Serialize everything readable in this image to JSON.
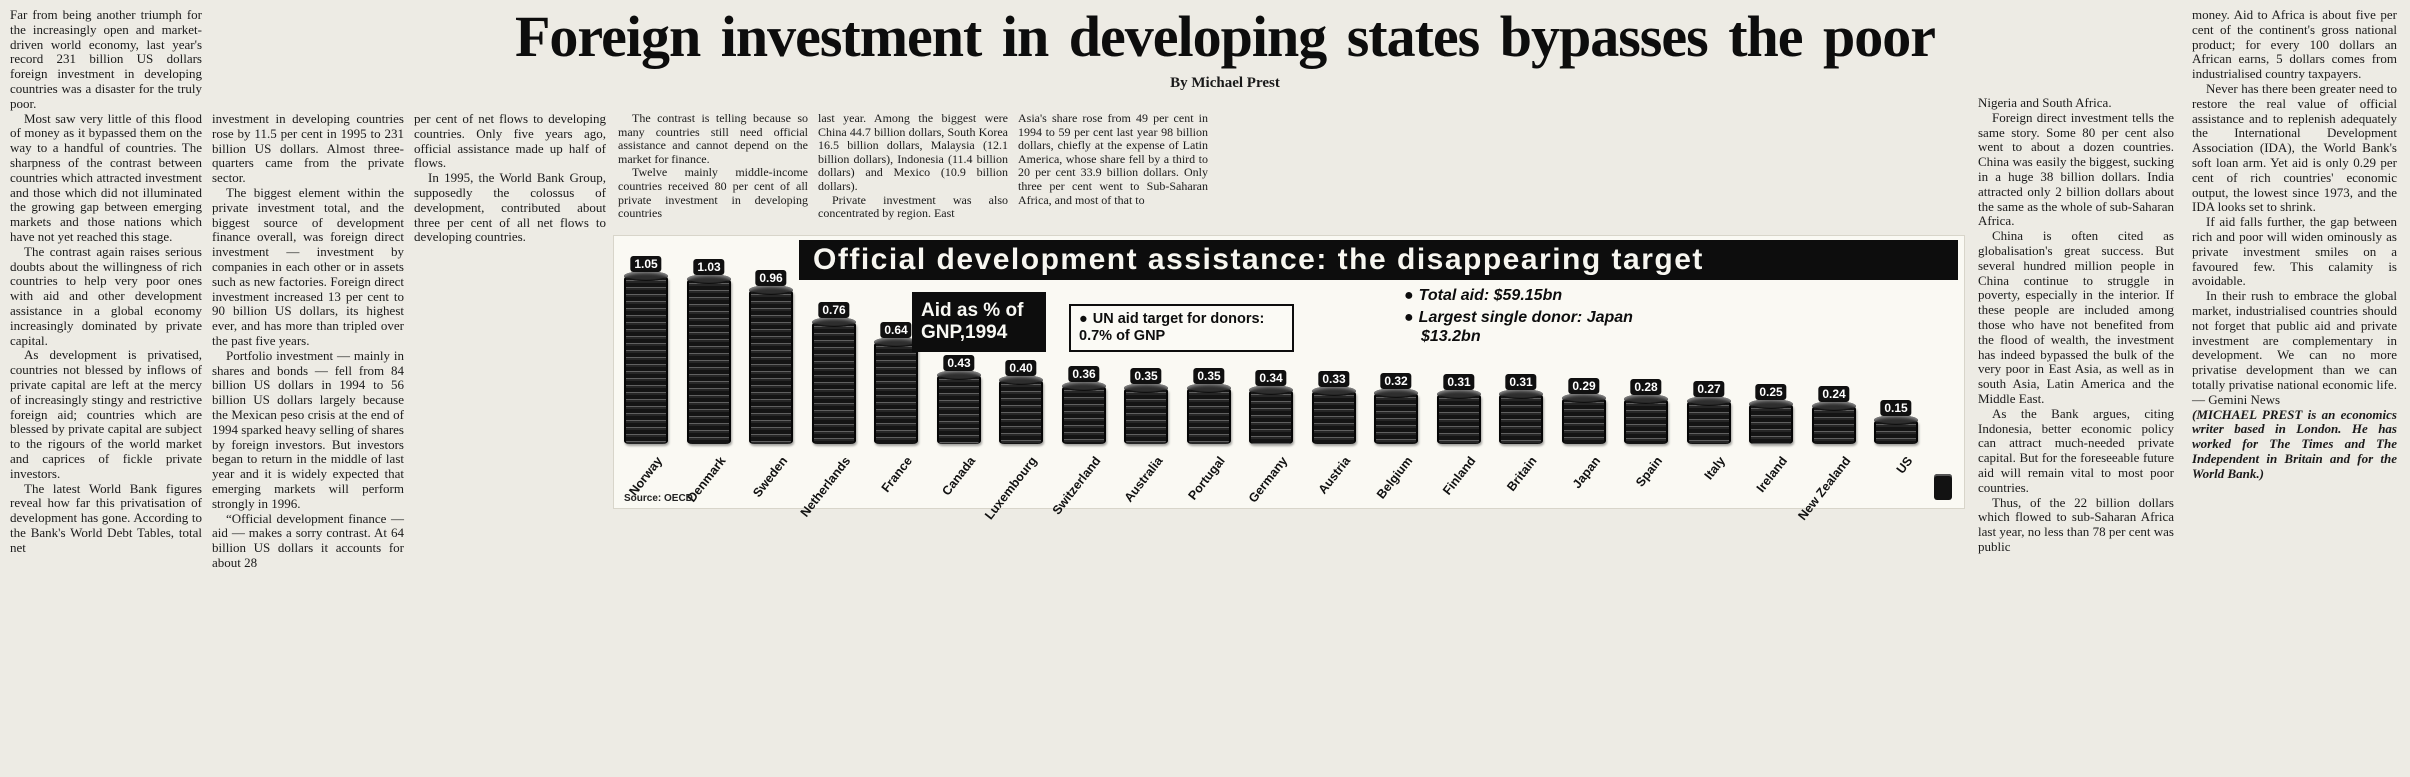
{
  "page": {
    "headline": "Foreign investment in developing states bypasses the poor",
    "byline": "By Michael Prest"
  },
  "columns": {
    "col1": [
      "Far from being another triumph for the increasingly open and market-driven world economy, last year's record 231 billion US dollars foreign investment in developing countries was a disaster for the truly poor.",
      "Most saw very little of this flood of money as it bypassed them on the way to a handful of countries. The sharpness of the contrast between countries which attracted investment and those which did not illuminated the growing gap between emerging markets and those nations which have not yet reached this stage.",
      "The contrast again raises serious doubts about the willingness of rich countries to help very poor ones with aid and other development assistance in a global economy increasingly dominated by private capital.",
      "As development is privatised, countries not blessed by inflows of private capital are left at the mercy of increasingly stingy and restrictive foreign aid; countries which are blessed by private capital are subject to the rigours of the world market and caprices of fickle private investors.",
      "The latest World Bank figures reveal how far this privatisation of development has gone. According to the Bank's World Debt Tables, total net"
    ],
    "col2": [
      "investment in developing countries rose by 11.5 per cent in 1995 to 231 billion US dollars. Almost three-quarters came from the private sector.",
      "The biggest element within the private investment total, and the biggest source of development finance overall, was foreign direct investment — investment by companies in each other or in assets such as new factories. Foreign direct investment increased 13 per cent to 90 billion US dollars, its highest ever, and has more than tripled over the past five years.",
      "Portfolio investment — mainly in shares and bonds — fell from 84 billion US dollars in 1994 to 56 billion US dollars largely because the Mexican peso crisis at the end of 1994 sparked heavy selling of shares by foreign investors. But investors began to return in the middle of last year and it is widely expected that emerging markets will perform strongly in 1996.",
      "“Official development finance — aid — makes a sorry contrast. At 64 billion US dollars it accounts for about 28"
    ],
    "col3": [
      "per cent of net flows to developing countries. Only five years ago, official assistance made up half of flows.",
      "In 1995, the World Bank Group, supposedly the colossus of development, contributed about three per cent of all net flows to developing countries."
    ],
    "col4": [
      "The contrast is telling because so many countries still need official assistance and cannot depend on the market for finance.",
      "Twelve mainly middle-income countries received 80 per cent of all private investment in developing countries"
    ],
    "col5": [
      "last year. Among the biggest were China 44.7 billion dollars, South Korea 16.5 billion dollars, Malaysia (12.1 billion dollars), Indonesia (11.4 billion dollars) and Mexico (10.9 billion dollars).",
      "Private investment was also concentrated by region. East"
    ],
    "col6": [
      "Asia's share rose from 49 per cent in 1994 to 59 per cent last year 98 billion dollars, chiefly at the expense of Latin America, whose share fell by a third to 20 per cent 33.9 billion dollars. Only three per cent went to Sub-Saharan Africa, and most of that to"
    ],
    "col7": [
      "Nigeria and South Africa.",
      "Foreign direct investment tells the same story. Some 80 per cent also went to about a dozen countries. China was easily the biggest, sucking in a huge 38 billion dollars. India attracted only 2 billion dollars about the same as the whole of sub-Saharan Africa.",
      "China is often cited as globalisation's great success. But several hundred million people in China continue to struggle in poverty, especially in the interior. If these people are included among those who have not benefited from the flood of wealth, the investment has indeed bypassed the bulk of the very poor in East Asia, as well as in south Asia, Latin America and the Middle East.",
      "As the Bank argues, citing Indonesia, better economic policy can attract much-needed private capital. But for the foreseeable future aid will remain vital to most poor countries.",
      "Thus, of the 22 billion dollars which flowed to sub-Saharan Africa last year, no less than 78 per cent was public"
    ],
    "col8": [
      "money. Aid to Africa is about five per cent of the continent's gross national product; for every 100 dollars an African earns, 5 dollars comes from industrialised country taxpayers.",
      "Never has there been greater need to restore the real value of official assistance and to replenish adequately the International Development Association (IDA), the World Bank's soft loan arm. Yet aid is only 0.29 per cent of rich countries' economic output, the lowest since 1973, and the IDA looks set to shrink.",
      "If aid falls further, the gap between rich and poor will widen ominously as private investment smiles on a favoured few. This calamity is avoidable.",
      "In their rush to embrace the global market, industrialised countries should not forget that public aid and private investment are complementary in development. We can no more privatise development than we can totally privatise national economic life. — Gemini News"
    ],
    "bio": "(MICHAEL PREST is an economics writer based in London. He has worked for The Times and The Independent in Britain and for the World Bank.)"
  },
  "chart_data": {
    "type": "bar",
    "title": "Official development assistance: the disappearing target",
    "subtitle": "Aid as % of GNP,1994",
    "bullet": "●",
    "un_target": "UN aid target for donors: 0.7% of GNP",
    "total_aid": "Total aid: $59.15bn",
    "largest_donor": "Largest single donor: Japan $13.2bn",
    "source": "Source: OECD",
    "ylabel": "Aid as % of GNP",
    "ylim": [
      0,
      1.1
    ],
    "legend_position": "none",
    "grid": false,
    "categories": [
      "Norway",
      "Denmark",
      "Sweden",
      "Netherlands",
      "France",
      "Canada",
      "Luxembourg",
      "Switzerland",
      "Australia",
      "Portugal",
      "Germany",
      "Austria",
      "Belgium",
      "Finland",
      "Britain",
      "Japan",
      "Spain",
      "Italy",
      "Ireland",
      "New Zealand",
      "US"
    ],
    "values": [
      1.05,
      1.03,
      0.96,
      0.76,
      0.64,
      0.43,
      0.4,
      0.36,
      0.35,
      0.35,
      0.34,
      0.33,
      0.32,
      0.31,
      0.31,
      0.29,
      0.28,
      0.27,
      0.25,
      0.24,
      0.15
    ],
    "bar_colors": {
      "coin": "#141414",
      "rim": "#606060"
    },
    "accent_colors": {
      "titlebar": "#0d0d0d",
      "paper": "#edebe4"
    }
  }
}
